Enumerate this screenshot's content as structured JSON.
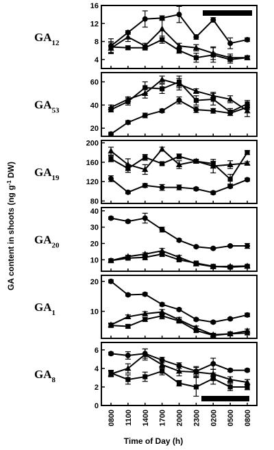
{
  "figure": {
    "ylabel_main": "GA content in shoots (ng g",
    "ylabel_sup": "-1",
    "ylabel_end": " DW)",
    "xlabel": "Time of Day (h)"
  },
  "chart_data": [
    {
      "type": "line",
      "label_base": "GA",
      "label_sub": "12",
      "ylim": [
        2,
        16
      ],
      "yticks": [
        4,
        8,
        12,
        16
      ],
      "dark_bar": "top",
      "categories": [
        "0800",
        "1100",
        "1400",
        "1700",
        "2000",
        "2300",
        "0200",
        "0500",
        "0800"
      ],
      "series": [
        {
          "marker": "circle",
          "values": [
            7.0,
            10.0,
            13.0,
            13.2,
            14.0,
            9.0,
            12.8,
            7.6,
            8.4
          ],
          "errors": [
            1.6,
            0.4,
            1.8,
            0.5,
            1.8,
            0.5,
            0.5,
            1.2,
            0.4
          ]
        },
        {
          "marker": "triangle",
          "values": [
            6.5,
            9.0,
            7.0,
            10.8,
            7.0,
            6.6,
            5.4,
            4.4,
            4.4
          ],
          "errors": [
            1.2,
            1.0,
            0.6,
            2.0,
            0.6,
            0.7,
            1.4,
            0.8,
            0.4
          ]
        },
        {
          "marker": "square",
          "values": [
            6.8,
            6.6,
            6.6,
            8.4,
            6.0,
            4.4,
            5.0,
            4.0,
            4.4
          ],
          "errors": [
            1.2,
            0.4,
            0.5,
            0.8,
            0.6,
            1.0,
            1.6,
            0.8,
            0.3
          ]
        }
      ]
    },
    {
      "type": "line",
      "label_base": "GA",
      "label_sub": "53",
      "ylim": [
        13,
        68
      ],
      "yticks": [
        20,
        40,
        60
      ],
      "dark_bar": null,
      "categories": [
        "0800",
        "1100",
        "1400",
        "1700",
        "2000",
        "2300",
        "0200",
        "0500",
        "0800"
      ],
      "series": [
        {
          "marker": "circle",
          "values": [
            15,
            25,
            31,
            35,
            44,
            36,
            35,
            33,
            38
          ],
          "errors": [
            1.5,
            1.5,
            2,
            1.5,
            3,
            2.5,
            2,
            2,
            2
          ]
        },
        {
          "marker": "triangle",
          "values": [
            38,
            45,
            50,
            62,
            58,
            52,
            48,
            45,
            35
          ],
          "errors": [
            2,
            2,
            4,
            3,
            5,
            2,
            3,
            3,
            5
          ]
        },
        {
          "marker": "square",
          "values": [
            36,
            43,
            55,
            54,
            60,
            44,
            45,
            34,
            41
          ],
          "errors": [
            2,
            3,
            5,
            4,
            5,
            4,
            5,
            3,
            3
          ]
        }
      ]
    },
    {
      "type": "line",
      "label_base": "GA",
      "label_sub": "19",
      "ylim": [
        75,
        205
      ],
      "yticks": [
        80,
        120,
        160,
        200
      ],
      "dark_bar": null,
      "categories": [
        "0800",
        "1100",
        "1400",
        "1700",
        "2000",
        "2300",
        "0200",
        "0500",
        "0800"
      ],
      "series": [
        {
          "marker": "circle",
          "values": [
            126,
            98,
            112,
            108,
            108,
            105,
            97,
            110,
            124
          ],
          "errors": [
            6,
            3,
            4,
            6,
            5,
            3,
            3,
            3,
            3
          ]
        },
        {
          "marker": "triangle",
          "values": [
            183,
            155,
            145,
            187,
            155,
            162,
            152,
            155,
            158
          ],
          "errors": [
            8,
            12,
            10,
            4,
            8,
            3,
            14,
            8,
            3
          ]
        },
        {
          "marker": "square",
          "values": [
            167,
            147,
            170,
            157,
            172,
            162,
            157,
            125,
            180
          ],
          "errors": [
            6,
            8,
            6,
            3,
            5,
            3,
            5,
            10,
            4
          ]
        }
      ]
    },
    {
      "type": "line",
      "label_base": "GA",
      "label_sub": "20",
      "ylim": [
        3,
        42
      ],
      "yticks": [
        10,
        20,
        30,
        40
      ],
      "dark_bar": null,
      "categories": [
        "0800",
        "1100",
        "1400",
        "1700",
        "2000",
        "2300",
        "0200",
        "0500",
        "0800"
      ],
      "series": [
        {
          "marker": "circle",
          "values": [
            35.5,
            33.5,
            35.5,
            28.5,
            22,
            18,
            17,
            18.5,
            18.5
          ],
          "errors": [
            0.8,
            0.8,
            3,
            1.5,
            0.8,
            0.6,
            0.6,
            0.6,
            1.5
          ]
        },
        {
          "marker": "triangle",
          "values": [
            9.5,
            12,
            13.5,
            15.5,
            11.5,
            7.5,
            5.8,
            6.0,
            6.2
          ],
          "errors": [
            0.5,
            0.8,
            0.8,
            1.5,
            1.2,
            0.8,
            0.6,
            0.6,
            0.5
          ]
        },
        {
          "marker": "square",
          "values": [
            9.5,
            11,
            11.5,
            13.5,
            10,
            8,
            6.0,
            5.5,
            6.0
          ],
          "errors": [
            0.5,
            1,
            1.5,
            1.5,
            1,
            0.6,
            0.6,
            0.5,
            0.5
          ]
        }
      ]
    },
    {
      "type": "line",
      "label_base": "GA",
      "label_sub": "1",
      "ylim": [
        1,
        22
      ],
      "yticks": [
        10,
        20
      ],
      "dark_bar": null,
      "categories": [
        "0800",
        "1100",
        "1400",
        "1700",
        "2000",
        "2300",
        "0200",
        "0500",
        "0800"
      ],
      "series": [
        {
          "marker": "circle",
          "values": [
            20,
            15.5,
            15.7,
            12.3,
            10.6,
            7.3,
            6.4,
            7.5,
            8.8
          ],
          "errors": [
            0.5,
            0.4,
            0.5,
            0.5,
            0.4,
            0.4,
            0.4,
            0.4,
            0.6
          ]
        },
        {
          "marker": "triangle",
          "values": [
            5.5,
            8.2,
            9.2,
            9.8,
            7.2,
            4.5,
            2.2,
            2.5,
            3.5
          ],
          "errors": [
            0.6,
            0.6,
            0.7,
            0.8,
            0.8,
            0.6,
            0.5,
            0.5,
            0.6
          ]
        },
        {
          "marker": "square",
          "values": [
            5.3,
            5.0,
            7.3,
            8.5,
            6.8,
            3.6,
            2.0,
            2.5,
            2.8
          ],
          "errors": [
            0.6,
            0.6,
            0.7,
            1.0,
            0.7,
            0.6,
            0.5,
            0.5,
            0.6
          ]
        }
      ]
    },
    {
      "type": "line",
      "label_base": "GA",
      "label_sub": "8",
      "ylim": [
        0,
        6.8
      ],
      "yticks": [
        0,
        2,
        4,
        6
      ],
      "dark_bar": "bottom",
      "categories": [
        "0800",
        "1100",
        "1400",
        "1700",
        "2000",
        "2300",
        "0200",
        "0500",
        "0800"
      ],
      "series": [
        {
          "marker": "circle",
          "values": [
            5.6,
            5.4,
            5.6,
            4.9,
            4.3,
            3.7,
            4.5,
            3.8,
            3.8
          ],
          "errors": [
            0.15,
            0.4,
            0.5,
            0.3,
            0.3,
            0.5,
            0.6,
            0.15,
            0.15
          ]
        },
        {
          "marker": "triangle",
          "values": [
            3.4,
            4.0,
            5.5,
            4.4,
            3.7,
            3.6,
            3.4,
            2.8,
            2.5
          ],
          "errors": [
            0.3,
            0.5,
            0.6,
            0.4,
            0.5,
            0.5,
            0.5,
            0.3,
            0.3
          ]
        },
        {
          "marker": "square",
          "values": [
            3.5,
            2.8,
            3.1,
            3.7,
            2.4,
            2.0,
            2.9,
            2.0,
            2.0
          ],
          "errors": [
            0.3,
            0.5,
            0.5,
            0.4,
            0.3,
            1.0,
            0.6,
            0.4,
            0.3
          ]
        }
      ]
    }
  ]
}
